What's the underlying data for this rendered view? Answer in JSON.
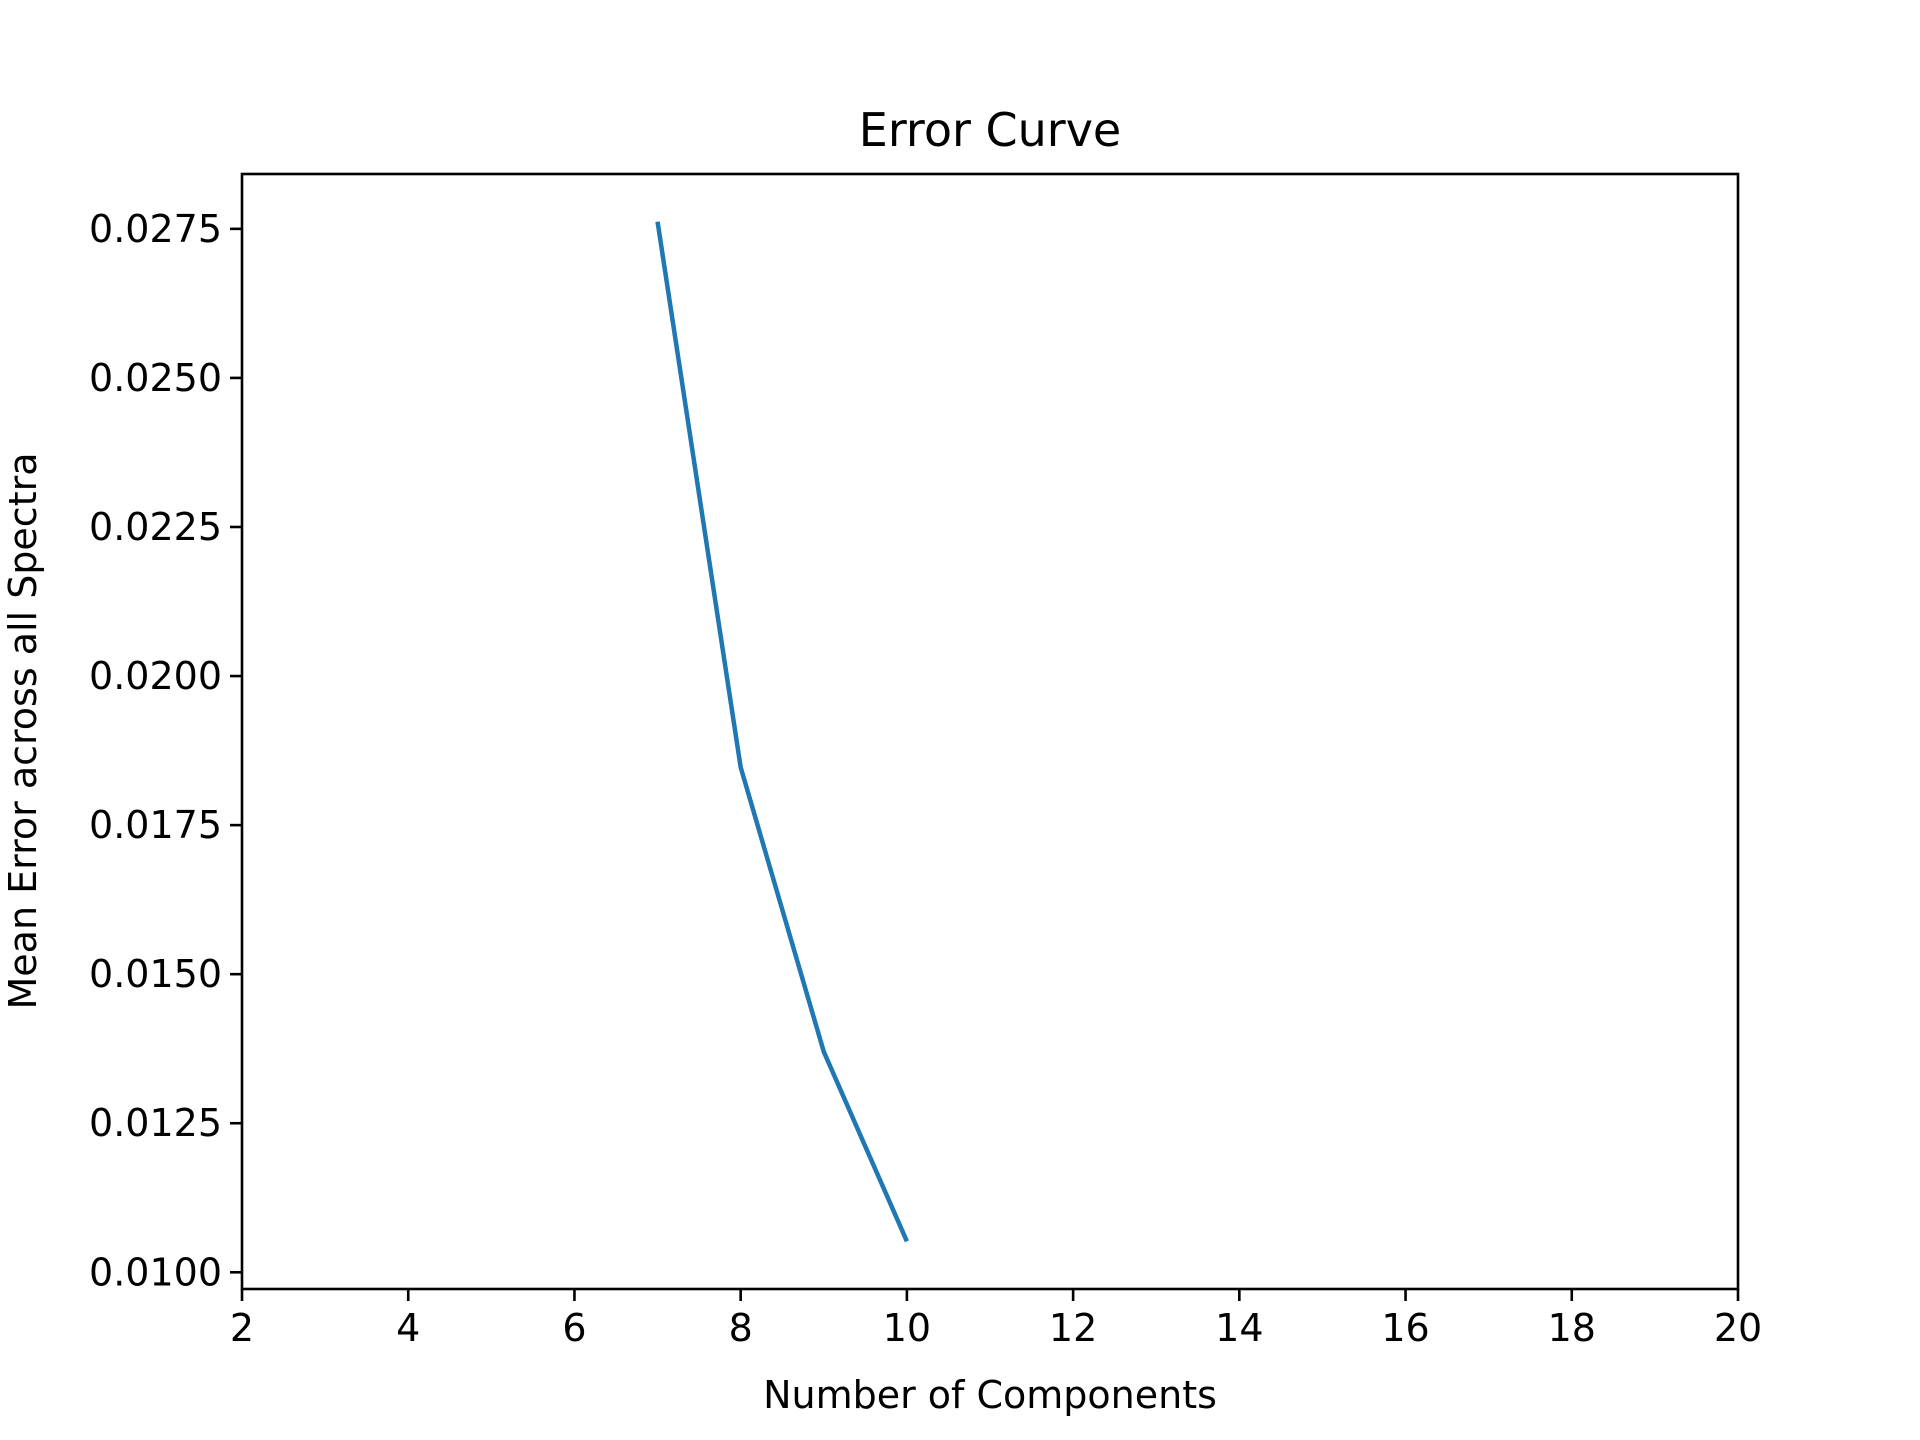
{
  "chart_data": {
    "type": "line",
    "title": "Error Curve",
    "xlabel": "Number of Components",
    "ylabel": "Mean Error across all Spectra",
    "xlim": [
      2,
      20
    ],
    "ylim": [
      0.00972,
      0.02842
    ],
    "xticks": [
      2,
      4,
      6,
      8,
      10,
      12,
      14,
      16,
      18,
      20
    ],
    "xtick_labels": [
      "2",
      "4",
      "6",
      "8",
      "10",
      "12",
      "14",
      "16",
      "18",
      "20"
    ],
    "yticks": [
      0.01,
      0.0125,
      0.015,
      0.0175,
      0.02,
      0.0225,
      0.025,
      0.0275
    ],
    "ytick_labels": [
      "0.0100",
      "0.0125",
      "0.0150",
      "0.0175",
      "0.0200",
      "0.0225",
      "0.0250",
      "0.0275"
    ],
    "grid": false,
    "series": [
      {
        "color": "#1f77b4",
        "x": [
          7,
          8,
          9,
          10
        ],
        "y": [
          0.02762,
          0.01847,
          0.0137,
          0.01052
        ]
      }
    ]
  }
}
